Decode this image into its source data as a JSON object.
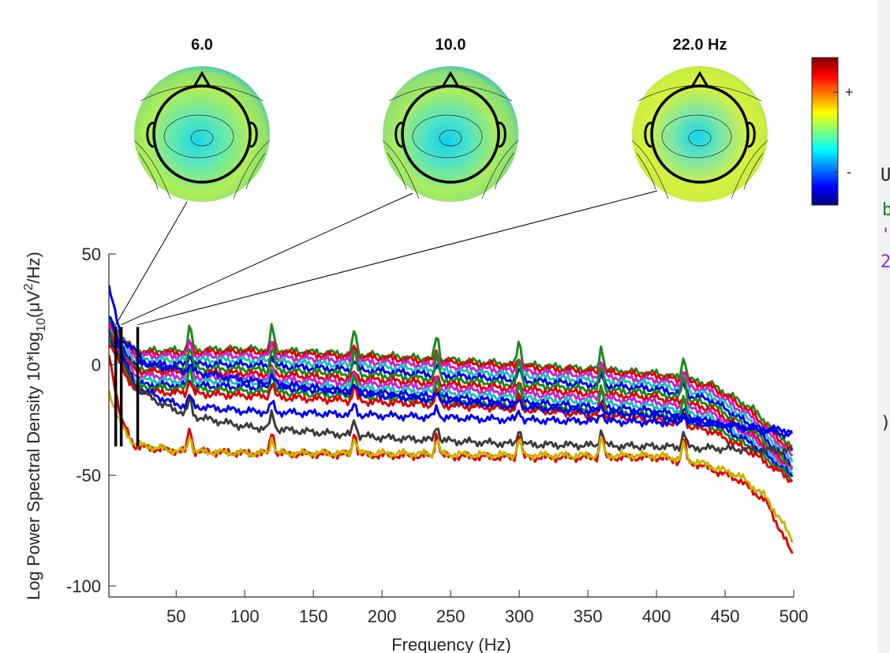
{
  "chart_data": {
    "type": "line",
    "xlabel": "Frequency (Hz)",
    "ylabel": "Log Power Spectral Density 10*log",
    "ylabel_sub": "10",
    "ylabel_tail": "(μV",
    "ylabel_sup": "2",
    "ylabel_end": "/Hz)",
    "xlim": [
      1,
      500
    ],
    "ylim": [
      -105,
      50
    ],
    "xticks": [
      50,
      100,
      150,
      200,
      250,
      300,
      350,
      400,
      450,
      500
    ],
    "yticks": [
      50,
      0,
      -50,
      -100
    ],
    "topo_titles": [
      "6.0",
      "10.0",
      "22.0 Hz"
    ],
    "topo_freqs": [
      6,
      10,
      22
    ],
    "colorbar_labels": [
      "+",
      "-"
    ],
    "line_noise_peaks_hz": [
      60,
      120,
      180,
      240,
      300,
      360,
      420
    ],
    "series": [
      {
        "color": "#1a8a1a",
        "values": [
          [
            1,
            20
          ],
          [
            20,
            6
          ],
          [
            100,
            7
          ],
          [
            200,
            4
          ],
          [
            300,
            0
          ],
          [
            400,
            -4
          ],
          [
            440,
            -9
          ],
          [
            470,
            -20
          ],
          [
            500,
            -38
          ]
        ]
      },
      {
        "color": "#e00000",
        "values": [
          [
            1,
            18
          ],
          [
            20,
            5
          ],
          [
            100,
            6
          ],
          [
            200,
            3
          ],
          [
            300,
            -1
          ],
          [
            400,
            -5
          ],
          [
            440,
            -10
          ],
          [
            470,
            -22
          ],
          [
            500,
            -40
          ]
        ]
      },
      {
        "color": "#cc22cc",
        "values": [
          [
            1,
            17
          ],
          [
            20,
            4
          ],
          [
            100,
            4
          ],
          [
            200,
            1
          ],
          [
            300,
            -3
          ],
          [
            400,
            -7
          ],
          [
            440,
            -12
          ],
          [
            470,
            -24
          ],
          [
            500,
            -42
          ]
        ]
      },
      {
        "color": "#1fbfbf",
        "values": [
          [
            1,
            16
          ],
          [
            20,
            2
          ],
          [
            100,
            2
          ],
          [
            200,
            -1
          ],
          [
            300,
            -5
          ],
          [
            400,
            -9
          ],
          [
            440,
            -14
          ],
          [
            470,
            -26
          ],
          [
            500,
            -44
          ]
        ]
      },
      {
        "color": "#0000ee",
        "values": [
          [
            1,
            15
          ],
          [
            20,
            0
          ],
          [
            100,
            0
          ],
          [
            200,
            -3
          ],
          [
            300,
            -7
          ],
          [
            400,
            -11
          ],
          [
            440,
            -16
          ],
          [
            470,
            -28
          ],
          [
            500,
            -46
          ]
        ]
      },
      {
        "color": "#1a8a1a",
        "values": [
          [
            1,
            15
          ],
          [
            20,
            -2
          ],
          [
            100,
            -2
          ],
          [
            200,
            -5
          ],
          [
            300,
            -9
          ],
          [
            400,
            -13
          ],
          [
            440,
            -18
          ],
          [
            470,
            -30
          ],
          [
            500,
            -47
          ]
        ]
      },
      {
        "color": "#e00000",
        "values": [
          [
            1,
            14
          ],
          [
            20,
            -3
          ],
          [
            100,
            -4
          ],
          [
            200,
            -7
          ],
          [
            300,
            -11
          ],
          [
            400,
            -15
          ],
          [
            440,
            -20
          ],
          [
            470,
            -32
          ],
          [
            500,
            -48
          ]
        ]
      },
      {
        "color": "#cc22cc",
        "values": [
          [
            1,
            13
          ],
          [
            20,
            -5
          ],
          [
            100,
            -6
          ],
          [
            200,
            -9
          ],
          [
            300,
            -13
          ],
          [
            400,
            -17
          ],
          [
            440,
            -22
          ],
          [
            470,
            -33
          ],
          [
            500,
            -49
          ]
        ]
      },
      {
        "color": "#1fbfbf",
        "values": [
          [
            1,
            12
          ],
          [
            20,
            -7
          ],
          [
            100,
            -8
          ],
          [
            200,
            -11
          ],
          [
            300,
            -15
          ],
          [
            400,
            -19
          ],
          [
            440,
            -24
          ],
          [
            470,
            -35
          ],
          [
            500,
            -50
          ]
        ]
      },
      {
        "color": "#0000ee",
        "values": [
          [
            1,
            12
          ],
          [
            20,
            -9
          ],
          [
            100,
            -10
          ],
          [
            200,
            -13
          ],
          [
            300,
            -17
          ],
          [
            400,
            -21
          ],
          [
            440,
            -26
          ],
          [
            470,
            -36
          ],
          [
            500,
            -51
          ]
        ]
      },
      {
        "color": "#1a8a1a",
        "values": [
          [
            1,
            11
          ],
          [
            20,
            -10
          ],
          [
            100,
            -12
          ],
          [
            200,
            -15
          ],
          [
            300,
            -19
          ],
          [
            400,
            -23
          ],
          [
            440,
            -28
          ],
          [
            470,
            -38
          ],
          [
            500,
            -52
          ]
        ]
      },
      {
        "color": "#e00000",
        "values": [
          [
            1,
            10
          ],
          [
            20,
            -12
          ],
          [
            100,
            -14
          ],
          [
            200,
            -17
          ],
          [
            300,
            -20
          ],
          [
            400,
            -25
          ],
          [
            440,
            -30
          ],
          [
            470,
            -40
          ],
          [
            500,
            -53
          ]
        ]
      },
      {
        "color": "#0000ee",
        "values": [
          [
            1,
            35
          ],
          [
            10,
            12
          ],
          [
            30,
            0
          ],
          [
            100,
            -7
          ],
          [
            200,
            -14
          ],
          [
            300,
            -19
          ],
          [
            400,
            -23
          ],
          [
            460,
            -28
          ],
          [
            480,
            -29
          ],
          [
            500,
            -30
          ]
        ]
      },
      {
        "color": "#0000ee",
        "values": [
          [
            1,
            22
          ],
          [
            20,
            -10
          ],
          [
            50,
            -18
          ],
          [
            100,
            -21
          ],
          [
            200,
            -23
          ],
          [
            300,
            -25
          ],
          [
            400,
            -26
          ],
          [
            450,
            -27
          ],
          [
            500,
            -32
          ]
        ]
      },
      {
        "color": "#3c3c3c",
        "values": [
          [
            1,
            14
          ],
          [
            20,
            -10
          ],
          [
            40,
            -18
          ],
          [
            60,
            -23
          ],
          [
            100,
            -28
          ],
          [
            200,
            -33
          ],
          [
            300,
            -36
          ],
          [
            400,
            -37
          ],
          [
            500,
            -39
          ]
        ]
      },
      {
        "color": "#e00000",
        "values": [
          [
            1,
            5
          ],
          [
            10,
            -25
          ],
          [
            20,
            -37
          ],
          [
            50,
            -39
          ],
          [
            100,
            -40
          ],
          [
            200,
            -41
          ],
          [
            300,
            -42
          ],
          [
            400,
            -42
          ],
          [
            430,
            -45
          ],
          [
            460,
            -52
          ],
          [
            480,
            -62
          ],
          [
            500,
            -87
          ]
        ]
      },
      {
        "color": "#c8b400",
        "values": [
          [
            1,
            -12
          ],
          [
            10,
            -28
          ],
          [
            20,
            -36
          ],
          [
            50,
            -39
          ],
          [
            100,
            -40
          ],
          [
            200,
            -40
          ],
          [
            300,
            -41
          ],
          [
            400,
            -41
          ],
          [
            430,
            -44
          ],
          [
            460,
            -50
          ],
          [
            480,
            -60
          ],
          [
            500,
            -80
          ]
        ]
      }
    ]
  }
}
